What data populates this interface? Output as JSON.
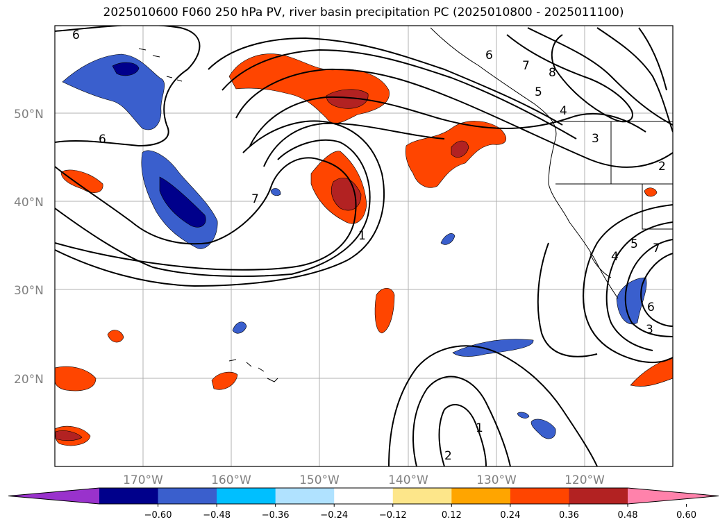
{
  "title": "2025010600 F060 250 hPa PV, river basin precipitation PC (2025010800 - 2025011100)",
  "lat_labels": [
    "50°N",
    "40°N",
    "30°N",
    "20°N"
  ],
  "lon_labels": [
    "170°W",
    "160°W",
    "150°W",
    "140°W",
    "130°W",
    "120°W"
  ],
  "colorbar": {
    "ticks": [
      "−0.60",
      "−0.48",
      "−0.36",
      "−0.24",
      "−0.12",
      "0.12",
      "0.24",
      "0.36",
      "0.48",
      "0.60"
    ],
    "colors": [
      "#9932cc",
      "#00008b",
      "#3a5fcd",
      "#00bfff",
      "#b0e2ff",
      "#ffffff",
      "#fde68a",
      "#ffa500",
      "#ff4500",
      "#b22222",
      "#ff82ab"
    ]
  },
  "contour_labels": [
    "6",
    "6",
    "6",
    "7",
    "8",
    "5",
    "4",
    "3",
    "7",
    "1",
    "1",
    "2",
    "4",
    "5",
    "7",
    "6",
    "3",
    "2"
  ],
  "shading_colors": {
    "strong_neg": "#00008b",
    "neg": "#3a5fcd",
    "weak_neg": "#00bfff",
    "pos": "#ff4500",
    "strong_pos": "#b22222",
    "weak_pos": "#ffa500"
  }
}
